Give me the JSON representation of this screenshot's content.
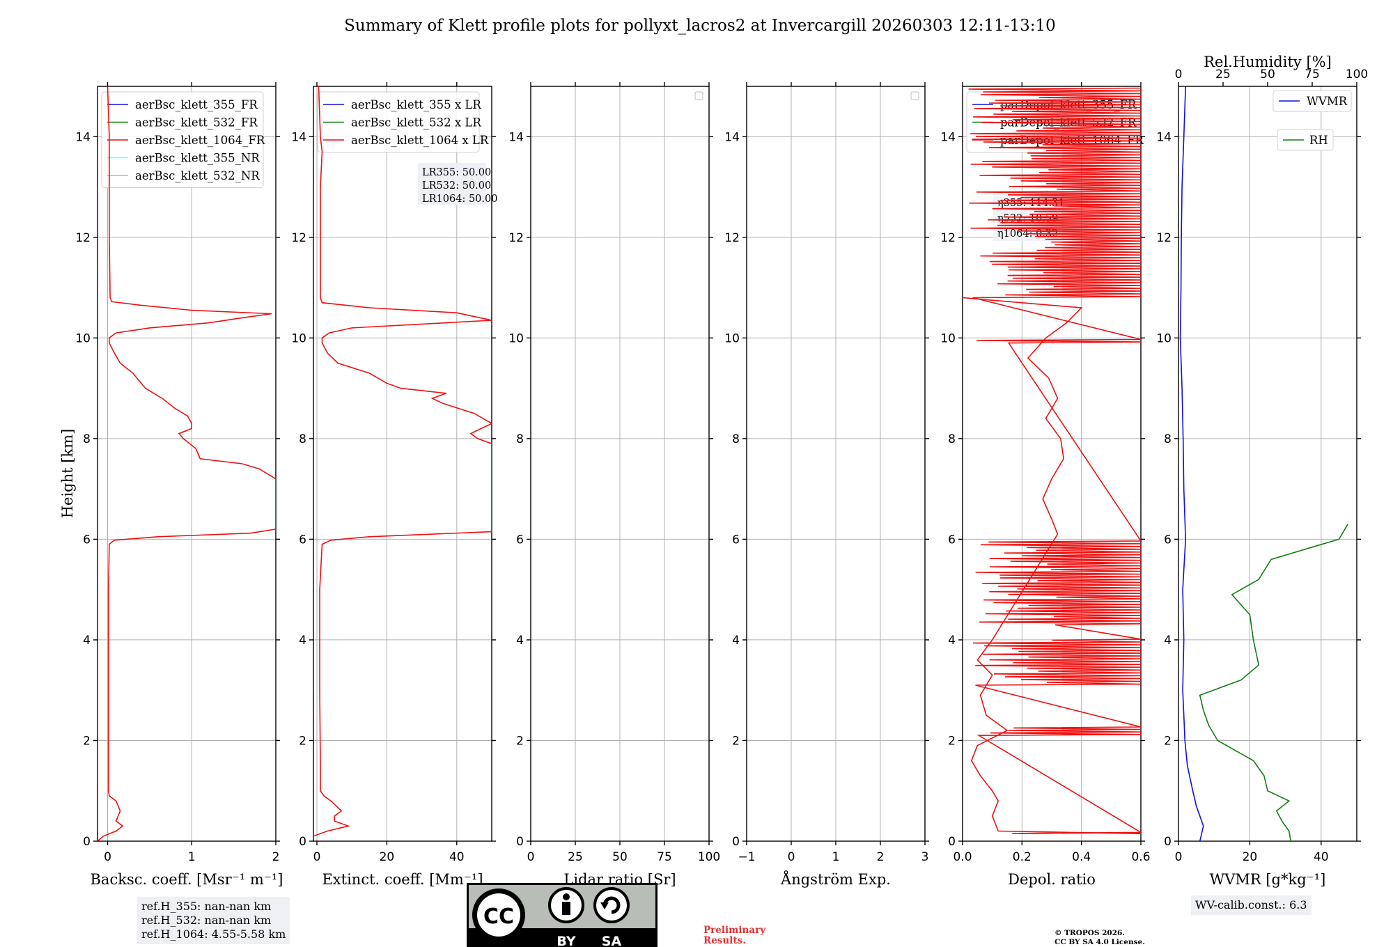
{
  "title": "Summary of Klett profile plots for pollyxt_lacros2 at Invercargill 20260303 12:11-13:10",
  "colors": {
    "c355": "#1010e0",
    "c532": "#108010",
    "c1064": "#ee1010",
    "c355nr": "#66ffff",
    "c532nr": "#7de07d",
    "wvmr": "#1010e0",
    "rh": "#108010"
  },
  "y_axis": {
    "label": "Height [km]",
    "ylim": [
      0,
      15
    ],
    "ticks": [
      0,
      2,
      4,
      6,
      8,
      10,
      12,
      14
    ]
  },
  "panels": [
    {
      "xlabel": "Backsc. coeff. [Msr⁻¹ m⁻¹]",
      "xlim": [
        -0.12,
        2.0
      ],
      "xticks": [
        "0",
        "1",
        "2"
      ],
      "xtick_vals": [
        0,
        1,
        2
      ],
      "legend": [
        "aerBsc_klett_355_FR",
        "aerBsc_klett_532_FR",
        "aerBsc_klett_1064_FR",
        "aerBsc_klett_355_NR",
        "aerBsc_klett_532_NR"
      ]
    },
    {
      "xlabel": "Extinct. coeff. [Mm⁻¹]",
      "xlim": [
        -1,
        50
      ],
      "xticks": [
        "0",
        "20",
        "40"
      ],
      "xtick_vals": [
        0,
        20,
        40
      ],
      "legend": [
        "aerBsc_klett_355 x LR",
        "aerBsc_klett_532 x LR",
        "aerBsc_klett_1064 x LR"
      ],
      "lr_box": [
        "LR355: 50.00",
        "LR532: 50.00",
        "LR1064: 50.00"
      ]
    },
    {
      "xlabel": "Lidar ratio [Sr]",
      "xlim": [
        0,
        100
      ],
      "xticks": [
        "0",
        "25",
        "50",
        "75",
        "100"
      ],
      "xtick_vals": [
        0,
        25,
        50,
        75,
        100
      ]
    },
    {
      "xlabel": "Ångström Exp.",
      "xlim": [
        -1,
        3
      ],
      "xticks": [
        "−1",
        "0",
        "1",
        "2",
        "3"
      ],
      "xtick_vals": [
        -1,
        0,
        1,
        2,
        3
      ]
    },
    {
      "xlabel": "Depol. ratio",
      "xlim": [
        0,
        0.6
      ],
      "xticks": [
        "0.0",
        "0.2",
        "0.4",
        "0.6"
      ],
      "xtick_vals": [
        0,
        0.2,
        0.4,
        0.6
      ],
      "legend": [
        "parDepol_klett_355_FR",
        "parDepol_klett_532_FR",
        "parDepol_klett_1064_FR"
      ],
      "eta_box": [
        "η355: 114.31",
        "η532: 10.59",
        "η1064: 0.32"
      ]
    },
    {
      "xlabel": "WVMR [g*kg⁻¹]",
      "xlim": [
        0,
        50
      ],
      "xticks": [
        "0",
        "20",
        "40"
      ],
      "xtick_vals": [
        0,
        20,
        40
      ],
      "top_label": "Rel.Humidity [%]",
      "top_ticks": [
        "0",
        "25",
        "50",
        "75",
        "100"
      ],
      "top_tick_vals": [
        0,
        25,
        50,
        75,
        100
      ],
      "legend_wvmr": "WVMR",
      "legend_rh": "RH"
    }
  ],
  "chart_data": [
    {
      "type": "line",
      "panel": "Backsc. coeff.",
      "series": [
        {
          "name": "aerBsc_klett_1064_FR",
          "y": [
            0,
            0.1,
            0.2,
            0.3,
            0.4,
            0.6,
            0.8,
            0.9,
            1.0,
            1.5,
            3.0,
            5.0,
            5.9,
            5.98,
            6.05,
            6.12,
            6.2,
            6.3,
            7.2,
            7.4,
            7.5,
            7.6,
            7.8,
            8.0,
            8.1,
            8.2,
            8.3,
            8.45,
            8.6,
            8.8,
            9.0,
            9.1,
            9.3,
            9.5,
            9.7,
            9.9,
            10.0,
            10.1,
            10.2,
            10.3,
            10.4,
            10.48,
            10.55,
            10.65,
            10.72,
            10.8,
            12.0,
            13.0,
            14.0,
            15.0
          ],
          "x": [
            -0.12,
            -0.05,
            0.1,
            0.18,
            0.1,
            0.15,
            0.1,
            0.02,
            0.01,
            0.01,
            0.01,
            0.01,
            0.02,
            0.08,
            0.6,
            1.7,
            2.0,
            2.0,
            2.0,
            1.8,
            1.6,
            1.1,
            1.05,
            0.9,
            0.85,
            1.0,
            1.0,
            0.95,
            0.8,
            0.65,
            0.45,
            0.4,
            0.3,
            0.15,
            0.08,
            0.02,
            0.02,
            0.1,
            0.5,
            1.2,
            1.6,
            1.95,
            1.0,
            0.4,
            0.05,
            0.03,
            0.02,
            0.02,
            0.02,
            0.0
          ]
        }
      ]
    },
    {
      "type": "line",
      "panel": "Extinct. coeff.",
      "series": [
        {
          "name": "aerBsc_klett_1064 x LR",
          "y": [
            0.1,
            0.2,
            0.3,
            0.4,
            0.5,
            0.6,
            0.8,
            0.9,
            1.0,
            1.5,
            3.0,
            5.0,
            5.9,
            5.98,
            6.05,
            6.15,
            6.3,
            7.9,
            8.0,
            8.1,
            8.2,
            8.3,
            8.5,
            8.7,
            8.8,
            8.9,
            9.0,
            9.1,
            9.3,
            9.5,
            9.7,
            9.9,
            10.0,
            10.1,
            10.2,
            10.35,
            10.5,
            10.6,
            10.7,
            10.8,
            12.0,
            13.0,
            13.7,
            14.0,
            15.0
          ],
          "x": [
            -1,
            3,
            9,
            5,
            5,
            7,
            4,
            2,
            1,
            1,
            0.8,
            0.8,
            1.5,
            4,
            15,
            50,
            50,
            50,
            46,
            44,
            47,
            50,
            45,
            36,
            33,
            37,
            24,
            20,
            15,
            6,
            3,
            1.5,
            1.5,
            3.5,
            10,
            50,
            40,
            15,
            1.5,
            1,
            1,
            1,
            1.5,
            1,
            0.5
          ]
        }
      ]
    },
    {
      "type": "line",
      "panel": "Depol. ratio",
      "series": [
        {
          "name": "parDepol_klett_1064_FR",
          "y": [
            0.15,
            0.2,
            0.5,
            0.8,
            1.0,
            1.3,
            1.6,
            1.9,
            2.2,
            2.5,
            2.9,
            3.3,
            3.6,
            4.0,
            6.1,
            6.4,
            6.8,
            7.2,
            7.6,
            8.0,
            8.4,
            8.8,
            9.2,
            9.6,
            10.0,
            10.3,
            10.6,
            10.8
          ],
          "x": [
            0.6,
            0.12,
            0.1,
            0.12,
            0.1,
            0.06,
            0.03,
            0.05,
            0.15,
            0.08,
            0.06,
            0.1,
            0.05,
            0.1,
            0.32,
            0.3,
            0.27,
            0.3,
            0.34,
            0.33,
            0.28,
            0.32,
            0.29,
            0.22,
            0.28,
            0.35,
            0.4,
            0.0
          ]
        }
      ]
    },
    {
      "type": "line",
      "panel": "WVMR/RH",
      "series": [
        {
          "name": "WVMR",
          "y": [
            0,
            0.3,
            0.5,
            0.7,
            1.0,
            1.5,
            2.0,
            2.5,
            3.0,
            4.0,
            5.0,
            6.0,
            7.0,
            8.0,
            9.0,
            10.0,
            11.0,
            12.0,
            13.0,
            14.0,
            15.0
          ],
          "x": [
            6,
            7,
            6,
            5,
            4,
            2.5,
            1.8,
            1.5,
            1.2,
            1.5,
            1.2,
            2.0,
            1.5,
            1.3,
            1.0,
            0.5,
            0.7,
            0.8,
            1.0,
            1.5,
            2.0
          ]
        },
        {
          "name": "RH",
          "y": [
            0,
            0.2,
            0.4,
            0.6,
            0.8,
            1.0,
            1.3,
            1.6,
            2.0,
            2.3,
            2.6,
            2.9,
            3.2,
            3.5,
            4.0,
            4.5,
            4.9,
            5.2,
            5.6,
            6.0,
            6.3
          ],
          "x": [
            63,
            62,
            58,
            55,
            62,
            50,
            48,
            42,
            22,
            17,
            14,
            12,
            35,
            45,
            42,
            40,
            30,
            45,
            52,
            90,
            95
          ]
        }
      ]
    }
  ],
  "ref_box": [
    "ref.H_355: nan-nan km",
    "ref.H_532: nan-nan km",
    "ref.H_1064: 4.55-5.58 km"
  ],
  "wv_calib": "WV-calib.const.: 6.3",
  "prelim": [
    "Preliminary",
    "Results."
  ],
  "copyright": [
    "© TROPOS 2026.",
    "CC BY SA 4.0 License."
  ],
  "cc_logo": {
    "cc": "CC",
    "by": "BY",
    "sa": "SA"
  }
}
